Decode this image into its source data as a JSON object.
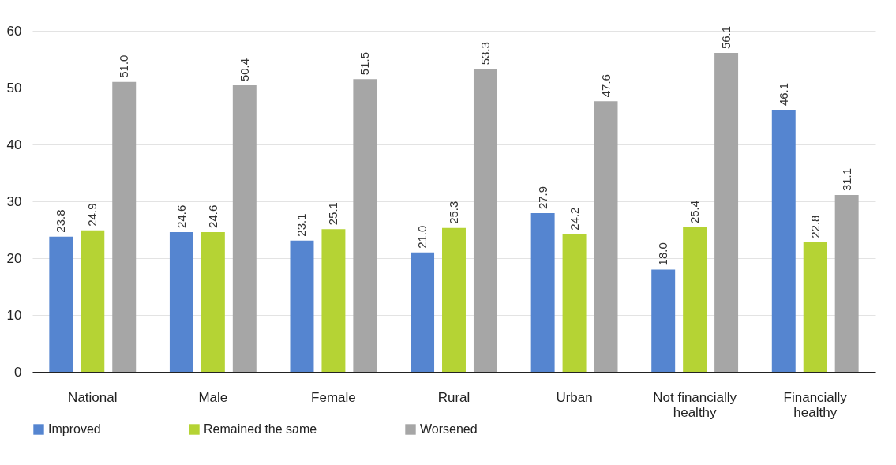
{
  "chart_data": {
    "type": "bar",
    "categories": [
      "National",
      "Male",
      "Female",
      "Rural",
      "Urban",
      "Not financially healthy",
      "Financially healthy"
    ],
    "series": [
      {
        "name": "Improved",
        "color": "#5585d0",
        "values": [
          23.8,
          24.6,
          23.1,
          21.0,
          27.9,
          18.0,
          46.1
        ],
        "value_labels": [
          "23.8",
          "24.6",
          "23.1",
          "21.0",
          "27.9",
          "18.0",
          "46.1"
        ]
      },
      {
        "name": "Remained the same",
        "color": "#b5d334",
        "values": [
          24.9,
          24.6,
          25.1,
          25.3,
          24.2,
          25.4,
          22.8
        ],
        "value_labels": [
          "24.9",
          "24.6",
          "25.1",
          "25.3",
          "24.2",
          "25.4",
          "22.8"
        ]
      },
      {
        "name": "Worsened",
        "color": "#a6a6a6",
        "values": [
          51.0,
          50.4,
          51.5,
          53.3,
          47.6,
          56.1,
          31.1
        ],
        "value_labels": [
          "51.0",
          "50.4",
          "51.5",
          "53.3",
          "47.6",
          "56.1",
          "31.1"
        ]
      }
    ],
    "ylim": [
      0,
      60
    ],
    "yticks": [
      0,
      10,
      20,
      30,
      40,
      50,
      60
    ],
    "grid": "y",
    "legend": "bottom"
  }
}
